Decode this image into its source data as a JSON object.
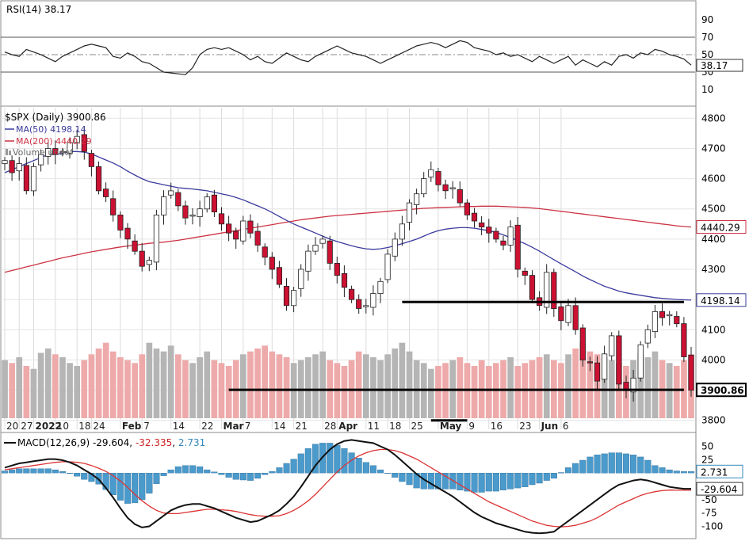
{
  "colors": {
    "up": "#ffffff",
    "down": "#cc1133",
    "ma50": "#3b3b9e",
    "ma200": "#cc3344",
    "volUp": "#b5b5b5",
    "volDown": "#eeaaaa",
    "rsi": "#222222",
    "macd": "#111111",
    "signal": "#dd3333",
    "hist": "#4a9acc",
    "level": "#000000"
  },
  "rsi_panel": {
    "label": "RSI(14) 38.17",
    "ticks": [
      "90",
      "70",
      "50",
      "30",
      "10"
    ],
    "tick_values": [
      90,
      70,
      50,
      30,
      10
    ],
    "value_tag": "38.17",
    "values": [
      53,
      50,
      48,
      56,
      53,
      50,
      46,
      42,
      48,
      52,
      56,
      60,
      62,
      60,
      58,
      48,
      46,
      52,
      48,
      42,
      40,
      35,
      30,
      29,
      28,
      27,
      35,
      50,
      56,
      58,
      56,
      58,
      54,
      50,
      44,
      48,
      42,
      40,
      46,
      52,
      48,
      44,
      42,
      48,
      52,
      56,
      60,
      56,
      52,
      50,
      48,
      44,
      40,
      44,
      48,
      52,
      56,
      60,
      62,
      64,
      62,
      58,
      62,
      66,
      64,
      58,
      56,
      54,
      50,
      52,
      48,
      50,
      46,
      42,
      48,
      44,
      40,
      44,
      48,
      38,
      44,
      40,
      36,
      42,
      38,
      48,
      50,
      46,
      52,
      50,
      56,
      54,
      50,
      48,
      45,
      38
    ]
  },
  "price_panel": {
    "title": "$SPX (Daily) 3900.86",
    "legend": [
      "MA(50) 4198.14",
      "MA(200) 4440.29",
      "Volume undef"
    ],
    "yticks": [
      "4800",
      "4700",
      "4600",
      "4500",
      "4400",
      "4300",
      "4200",
      "4100",
      "4000",
      "3900",
      "3800"
    ],
    "ytick_values": [
      4800,
      4700,
      4600,
      4500,
      4400,
      4300,
      4200,
      4100,
      4000,
      3900,
      3800
    ],
    "tags": [
      {
        "label": "4440.29",
        "value": 4440.29
      },
      {
        "label": "4198.14",
        "value": 4198.14
      },
      {
        "label": "3900.86",
        "value": 3900.86
      }
    ],
    "ylim": [
      3765,
      4835
    ],
    "levels": [
      {
        "from": 55,
        "to": 94,
        "value": 4192
      },
      {
        "from": 31,
        "to": 94,
        "value": 3901
      },
      {
        "from": 59,
        "to": 64,
        "value": 3800
      }
    ],
    "closes": [
      4660,
      4620,
      4650,
      4560,
      4640,
      4680,
      4700,
      4680,
      4690,
      4720,
      4740,
      4690,
      4640,
      4560,
      4540,
      4480,
      4430,
      4400,
      4360,
      4310,
      4330,
      4480,
      4540,
      4560,
      4510,
      4470,
      4480,
      4500,
      4540,
      4490,
      4450,
      4420,
      4400,
      4460,
      4420,
      4380,
      4340,
      4300,
      4250,
      4180,
      4230,
      4300,
      4360,
      4380,
      4400,
      4320,
      4280,
      4240,
      4200,
      4170,
      4180,
      4220,
      4260,
      4350,
      4400,
      4450,
      4520,
      4550,
      4600,
      4630,
      4580,
      4560,
      4570,
      4520,
      4480,
      4460,
      4440,
      4420,
      4400,
      4380,
      4440,
      4300,
      4280,
      4200,
      4180,
      4290,
      4170,
      4130,
      4180,
      4100,
      4000,
      3990,
      3930,
      4020,
      4080,
      3920,
      3900,
      3940,
      4050,
      4100,
      4160,
      4140,
      4150,
      4120,
      4010,
      3900
    ]
  },
  "volume": [
    40,
    38,
    42,
    36,
    34,
    45,
    48,
    44,
    42,
    38,
    36,
    40,
    44,
    48,
    52,
    46,
    42,
    40,
    38,
    44,
    52,
    48,
    46,
    50,
    44,
    40,
    38,
    42,
    46,
    40,
    38,
    36,
    40,
    44,
    46,
    48,
    50,
    46,
    44,
    42,
    38,
    40,
    42,
    44,
    46,
    40,
    38,
    36,
    40,
    46,
    44,
    42,
    40,
    44,
    48,
    52,
    46,
    40,
    38,
    34,
    36,
    38,
    40,
    42,
    38,
    36,
    40,
    36,
    38,
    40,
    42,
    36,
    38,
    40,
    42,
    44,
    40,
    38,
    44,
    48,
    52,
    46,
    44,
    42,
    40,
    38,
    36,
    40,
    44,
    42,
    46,
    40,
    38,
    36,
    40,
    44
  ],
  "ma50": [
    4620,
    4630,
    4640,
    4650,
    4660,
    4670,
    4680,
    4680,
    4685,
    4690,
    4690,
    4688,
    4682,
    4672,
    4662,
    4652,
    4640,
    4625,
    4612,
    4600,
    4590,
    4585,
    4580,
    4575,
    4570,
    4568,
    4566,
    4563,
    4560,
    4555,
    4550,
    4545,
    4538,
    4530,
    4520,
    4510,
    4500,
    4488,
    4475,
    4462,
    4450,
    4440,
    4430,
    4420,
    4410,
    4400,
    4392,
    4385,
    4378,
    4372,
    4368,
    4366,
    4368,
    4372,
    4378,
    4385,
    4392,
    4400,
    4410,
    4420,
    4428,
    4433,
    4436,
    4438,
    4438,
    4436,
    4432,
    4428,
    4422,
    4414,
    4405,
    4395,
    4385,
    4373,
    4360,
    4346,
    4332,
    4318,
    4305,
    4292,
    4278,
    4266,
    4255,
    4244,
    4236,
    4228,
    4222,
    4218,
    4214,
    4210,
    4206,
    4204,
    4202,
    4200,
    4199,
    4198
  ],
  "ma200": [
    4290,
    4296,
    4302,
    4308,
    4314,
    4320,
    4326,
    4332,
    4338,
    4343,
    4348,
    4353,
    4358,
    4362,
    4366,
    4370,
    4374,
    4377,
    4380,
    4383,
    4386,
    4388,
    4390,
    4393,
    4396,
    4400,
    4404,
    4408,
    4412,
    4416,
    4420,
    4424,
    4428,
    4432,
    4436,
    4440,
    4444,
    4448,
    4452,
    4456,
    4460,
    4464,
    4467,
    4470,
    4473,
    4476,
    4478,
    4480,
    4482,
    4484,
    4486,
    4488,
    4490,
    4492,
    4494,
    4496,
    4498,
    4500,
    4502,
    4503,
    4504,
    4505,
    4506,
    4507,
    4508,
    4508,
    4509,
    4509,
    4509,
    4508,
    4507,
    4506,
    4505,
    4503,
    4501,
    4498,
    4495,
    4492,
    4489,
    4486,
    4483,
    4480,
    4477,
    4474,
    4471,
    4468,
    4465,
    4462,
    4459,
    4456,
    4453,
    4450,
    4447,
    4444,
    4442,
    4440
  ],
  "dates": {
    "ticks": [
      "20",
      "27",
      "2022",
      "10",
      "18",
      "24",
      "Feb",
      "7",
      "14",
      "22",
      "Mar",
      "7",
      "14",
      "21",
      "28",
      "Apr",
      "11",
      "18",
      "25",
      "May",
      "9",
      "16",
      "23",
      "Jun",
      "6"
    ],
    "positions": [
      0,
      2,
      4,
      7,
      10,
      12,
      16,
      19,
      23,
      27,
      30,
      33,
      37,
      40,
      44,
      46,
      50,
      53,
      56,
      60,
      64,
      67,
      71,
      74,
      77
    ],
    "bold": [
      "2022",
      "Feb",
      "Mar",
      "Apr",
      "May",
      "Jun"
    ]
  },
  "macd_panel": {
    "label_prefix": "MACD(12,26,9)",
    "macd_value": "-29.604",
    "signal_value": "-32.335",
    "hist_value": "2.731",
    "ticks": [
      "50",
      "25",
      "0",
      "-25",
      "-50",
      "-75",
      "-100"
    ],
    "tick_values": [
      50,
      25,
      0,
      -25,
      -50,
      -75,
      -100
    ],
    "tags": [
      {
        "label": "2.731",
        "value": 2.731
      },
      {
        "label": "-29.604",
        "value": -29.604
      }
    ],
    "ylim": [
      -120,
      70
    ],
    "macd": [
      10,
      14,
      18,
      20,
      22,
      24,
      26,
      26,
      24,
      20,
      14,
      6,
      -2,
      -12,
      -28,
      -46,
      -66,
      -84,
      -96,
      -102,
      -100,
      -90,
      -80,
      -70,
      -64,
      -60,
      -58,
      -58,
      -62,
      -66,
      -72,
      -78,
      -84,
      -88,
      -92,
      -90,
      -84,
      -78,
      -70,
      -58,
      -44,
      -26,
      -6,
      14,
      30,
      44,
      54,
      60,
      62,
      60,
      58,
      56,
      50,
      44,
      34,
      22,
      10,
      -2,
      -12,
      -20,
      -28,
      -36,
      -44,
      -54,
      -64,
      -74,
      -82,
      -88,
      -94,
      -98,
      -102,
      -106,
      -110,
      -112,
      -113,
      -112,
      -110,
      -100,
      -90,
      -80,
      -70,
      -60,
      -50,
      -40,
      -30,
      -22,
      -18,
      -14,
      -12,
      -14,
      -18,
      -22,
      -26,
      -28,
      -29.6,
      -29.6
    ],
    "signal": [
      6,
      8,
      10,
      12,
      14,
      16,
      18,
      20,
      21,
      21,
      20,
      18,
      14,
      9,
      3,
      -5,
      -15,
      -27,
      -40,
      -52,
      -62,
      -70,
      -75,
      -76,
      -76,
      -74,
      -72,
      -70,
      -68,
      -68,
      -69,
      -70,
      -72,
      -75,
      -78,
      -80,
      -81,
      -81,
      -80,
      -76,
      -70,
      -62,
      -52,
      -40,
      -26,
      -12,
      2,
      14,
      24,
      32,
      38,
      42,
      44,
      44,
      42,
      38,
      32,
      26,
      18,
      10,
      2,
      -6,
      -14,
      -22,
      -30,
      -38,
      -46,
      -54,
      -60,
      -66,
      -72,
      -78,
      -84,
      -90,
      -94,
      -98,
      -100,
      -101,
      -100,
      -98,
      -94,
      -90,
      -84,
      -76,
      -68,
      -60,
      -54,
      -48,
      -42,
      -38,
      -35,
      -33,
      -32,
      -32.3,
      -32.3,
      -32.3
    ],
    "hist": [
      4,
      6,
      8,
      8,
      8,
      8,
      8,
      6,
      3,
      -1,
      -6,
      -12,
      -16,
      -21,
      -31,
      -41,
      -51,
      -57,
      -56,
      -50,
      -38,
      -20,
      -5,
      6,
      12,
      14,
      14,
      12,
      6,
      2,
      -3,
      -8,
      -12,
      -13,
      -14,
      -10,
      -3,
      3,
      10,
      18,
      26,
      36,
      46,
      54,
      56,
      56,
      52,
      46,
      38,
      28,
      20,
      14,
      6,
      0,
      -8,
      -16,
      -22,
      -28,
      -30,
      -30,
      -30,
      -30,
      -30,
      -32,
      -34,
      -36,
      -36,
      -34,
      -34,
      -32,
      -30,
      -28,
      -26,
      -22,
      -19,
      -14,
      -10,
      1,
      10,
      18,
      24,
      30,
      34,
      36,
      38,
      38,
      36,
      34,
      30,
      24,
      14,
      10,
      6,
      4,
      2.7,
      2.7
    ]
  }
}
